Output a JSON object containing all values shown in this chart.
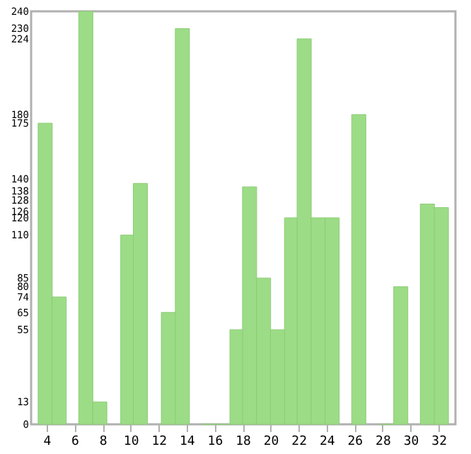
{
  "chart_data": {
    "type": "bar",
    "x": [
      3.9,
      4.9,
      6.8,
      7.8,
      9.8,
      10.7,
      12.7,
      13.7,
      15.6,
      16.6,
      17.6,
      18.5,
      19.5,
      20.5,
      21.5,
      22.4,
      23.4,
      24.4,
      26.3,
      28.3,
      29.3,
      31.2,
      32.2
    ],
    "values": [
      175,
      74,
      240,
      13,
      110,
      140,
      65,
      230,
      0,
      0,
      55,
      138,
      85,
      55,
      120,
      224,
      120,
      120,
      180,
      0,
      80,
      128,
      126
    ],
    "color": "#9cdc86",
    "xlim": [
      3.4,
      32.7
    ],
    "xticks": [
      4,
      6,
      8,
      10,
      12,
      14,
      16,
      18,
      20,
      22,
      24,
      26,
      28,
      30,
      32
    ],
    "ylim": [
      0,
      240
    ],
    "yticks": [
      0,
      13,
      55,
      65,
      74,
      80,
      85,
      110,
      120,
      126,
      128,
      138,
      140,
      175,
      180,
      224,
      230,
      240
    ],
    "grid": false
  }
}
